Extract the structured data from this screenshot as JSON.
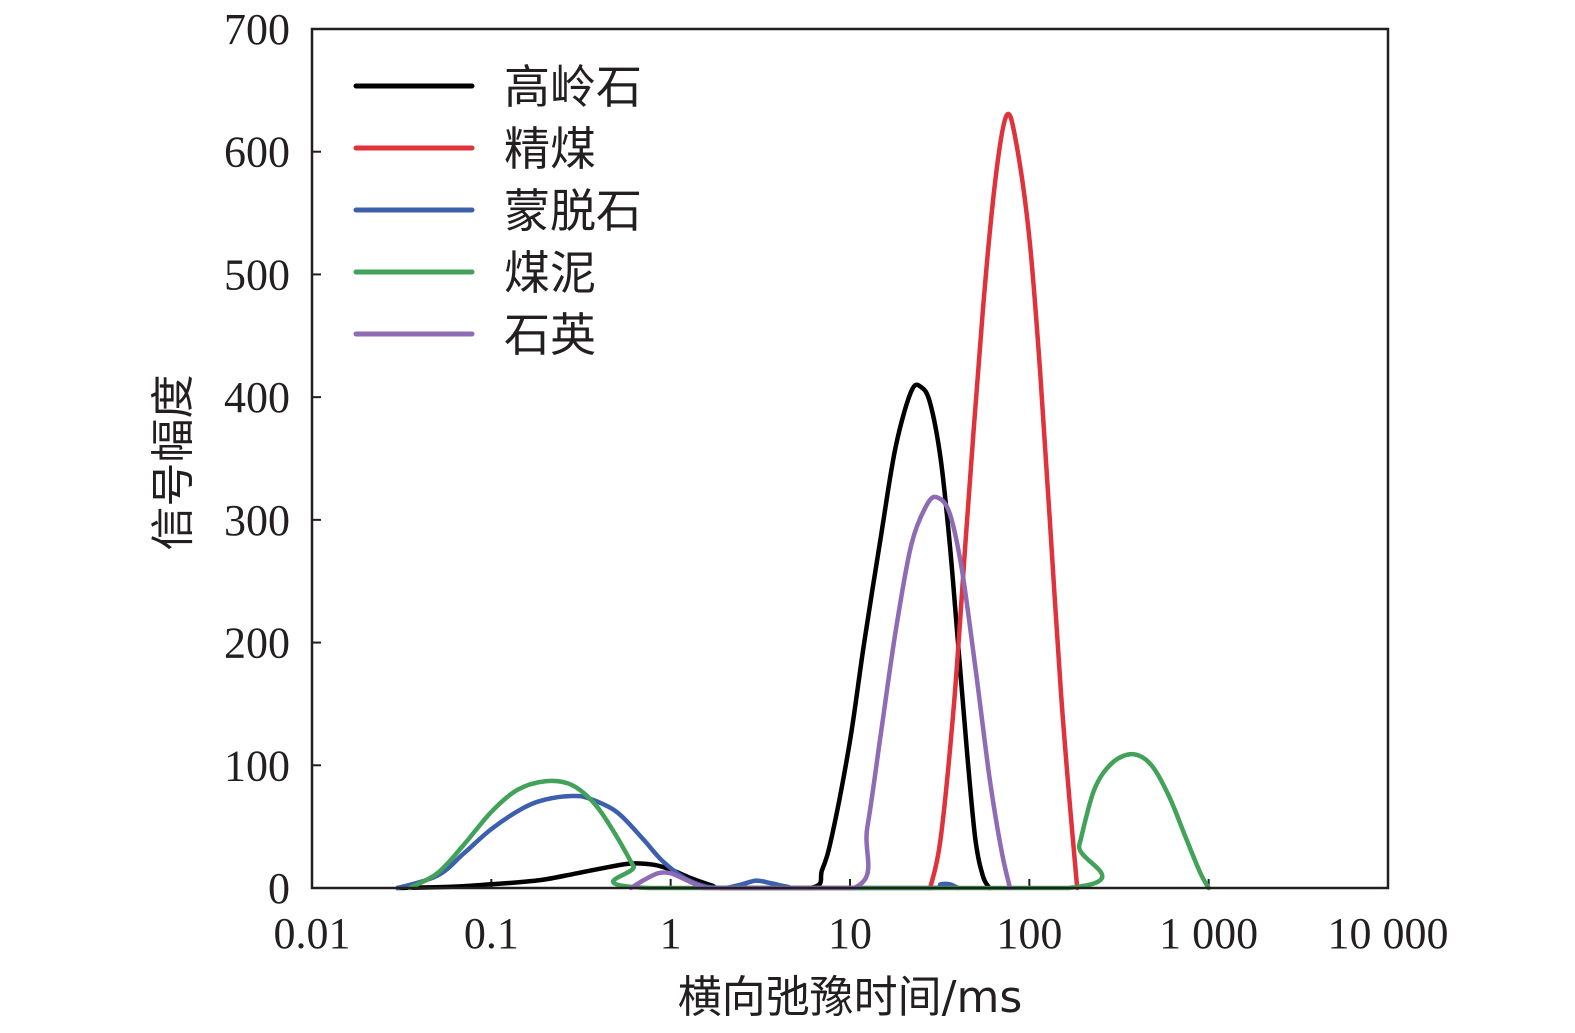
{
  "chart_data": {
    "type": "line",
    "xscale": "log",
    "xlabel": "横向弛豫时间/ms",
    "ylabel": "信号幅度",
    "xlim": [
      0.01,
      10000
    ],
    "ylim": [
      0,
      700
    ],
    "x_ticks": [
      0.01,
      0.1,
      1,
      10,
      100,
      1000,
      10000
    ],
    "x_tick_labels": [
      "0.01",
      "0.1",
      "1",
      "10",
      "100",
      "1 000",
      "10 000"
    ],
    "y_ticks": [
      0,
      100,
      200,
      300,
      400,
      500,
      600,
      700
    ],
    "y_tick_labels": [
      "0",
      "100",
      "200",
      "300",
      "400",
      "500",
      "600",
      "700"
    ],
    "grid": false,
    "legend_position": "top-left",
    "series": [
      {
        "name": "高岭石",
        "color": "#000000",
        "points": [
          [
            0.03,
            0
          ],
          [
            0.06,
            1
          ],
          [
            0.1,
            3
          ],
          [
            0.15,
            5
          ],
          [
            0.2,
            7
          ],
          [
            0.3,
            12
          ],
          [
            0.45,
            17
          ],
          [
            0.6,
            20
          ],
          [
            0.8,
            19
          ],
          [
            1.0,
            15
          ],
          [
            1.3,
            8
          ],
          [
            1.7,
            2
          ],
          [
            2.0,
            0
          ],
          [
            6.0,
            0
          ],
          [
            7.0,
            15
          ],
          [
            8.0,
            45
          ],
          [
            10.0,
            120
          ],
          [
            12.0,
            200
          ],
          [
            15.0,
            290
          ],
          [
            18.0,
            360
          ],
          [
            22.0,
            405
          ],
          [
            25.0,
            408
          ],
          [
            28.0,
            395
          ],
          [
            32.0,
            350
          ],
          [
            36.0,
            280
          ],
          [
            40.0,
            200
          ],
          [
            45.0,
            110
          ],
          [
            50.0,
            40
          ],
          [
            55.0,
            10
          ],
          [
            60.0,
            0
          ]
        ]
      },
      {
        "name": "精煤",
        "color": "#e0323a",
        "points": [
          [
            28,
            0
          ],
          [
            32,
            40
          ],
          [
            38,
            150
          ],
          [
            45,
            300
          ],
          [
            55,
            470
          ],
          [
            65,
            580
          ],
          [
            75,
            630
          ],
          [
            85,
            605
          ],
          [
            100,
            530
          ],
          [
            115,
            420
          ],
          [
            130,
            300
          ],
          [
            150,
            160
          ],
          [
            170,
            60
          ],
          [
            185,
            0
          ]
        ]
      },
      {
        "name": "蒙脱石",
        "color": "#3c60ad",
        "points": [
          [
            0.03,
            0
          ],
          [
            0.05,
            10
          ],
          [
            0.07,
            28
          ],
          [
            0.1,
            48
          ],
          [
            0.15,
            65
          ],
          [
            0.2,
            72
          ],
          [
            0.28,
            75
          ],
          [
            0.35,
            73
          ],
          [
            0.5,
            62
          ],
          [
            0.7,
            40
          ],
          [
            0.9,
            22
          ],
          [
            1.2,
            8
          ],
          [
            1.6,
            1
          ],
          [
            2.0,
            0
          ],
          [
            2.5,
            3
          ],
          [
            3.0,
            6
          ],
          [
            3.6,
            4
          ],
          [
            4.5,
            1
          ],
          [
            5.5,
            0
          ],
          [
            28,
            0
          ],
          [
            32,
            3
          ],
          [
            36,
            3
          ],
          [
            40,
            0
          ]
        ]
      },
      {
        "name": "煤泥",
        "color": "#42a259",
        "points": [
          [
            0.035,
            0
          ],
          [
            0.05,
            12
          ],
          [
            0.07,
            35
          ],
          [
            0.1,
            62
          ],
          [
            0.14,
            80
          ],
          [
            0.2,
            87
          ],
          [
            0.28,
            84
          ],
          [
            0.38,
            68
          ],
          [
            0.5,
            42
          ],
          [
            0.62,
            18
          ],
          [
            0.75,
            0
          ],
          [
            165,
            0
          ],
          [
            190,
            35
          ],
          [
            230,
            80
          ],
          [
            290,
            102
          ],
          [
            380,
            109
          ],
          [
            480,
            100
          ],
          [
            600,
            75
          ],
          [
            750,
            40
          ],
          [
            900,
            12
          ],
          [
            1000,
            0
          ]
        ]
      },
      {
        "name": "石英",
        "color": "#8e6bb4",
        "points": [
          [
            0.6,
            0
          ],
          [
            0.7,
            6
          ],
          [
            0.85,
            12
          ],
          [
            1.0,
            12
          ],
          [
            1.2,
            7
          ],
          [
            1.5,
            1
          ],
          [
            1.8,
            0
          ],
          [
            10.5,
            0
          ],
          [
            12.5,
            50
          ],
          [
            15,
            130
          ],
          [
            18,
            210
          ],
          [
            22,
            280
          ],
          [
            27,
            313
          ],
          [
            31,
            318
          ],
          [
            36,
            305
          ],
          [
            42,
            260
          ],
          [
            50,
            180
          ],
          [
            60,
            90
          ],
          [
            70,
            30
          ],
          [
            78,
            0
          ]
        ]
      }
    ]
  }
}
